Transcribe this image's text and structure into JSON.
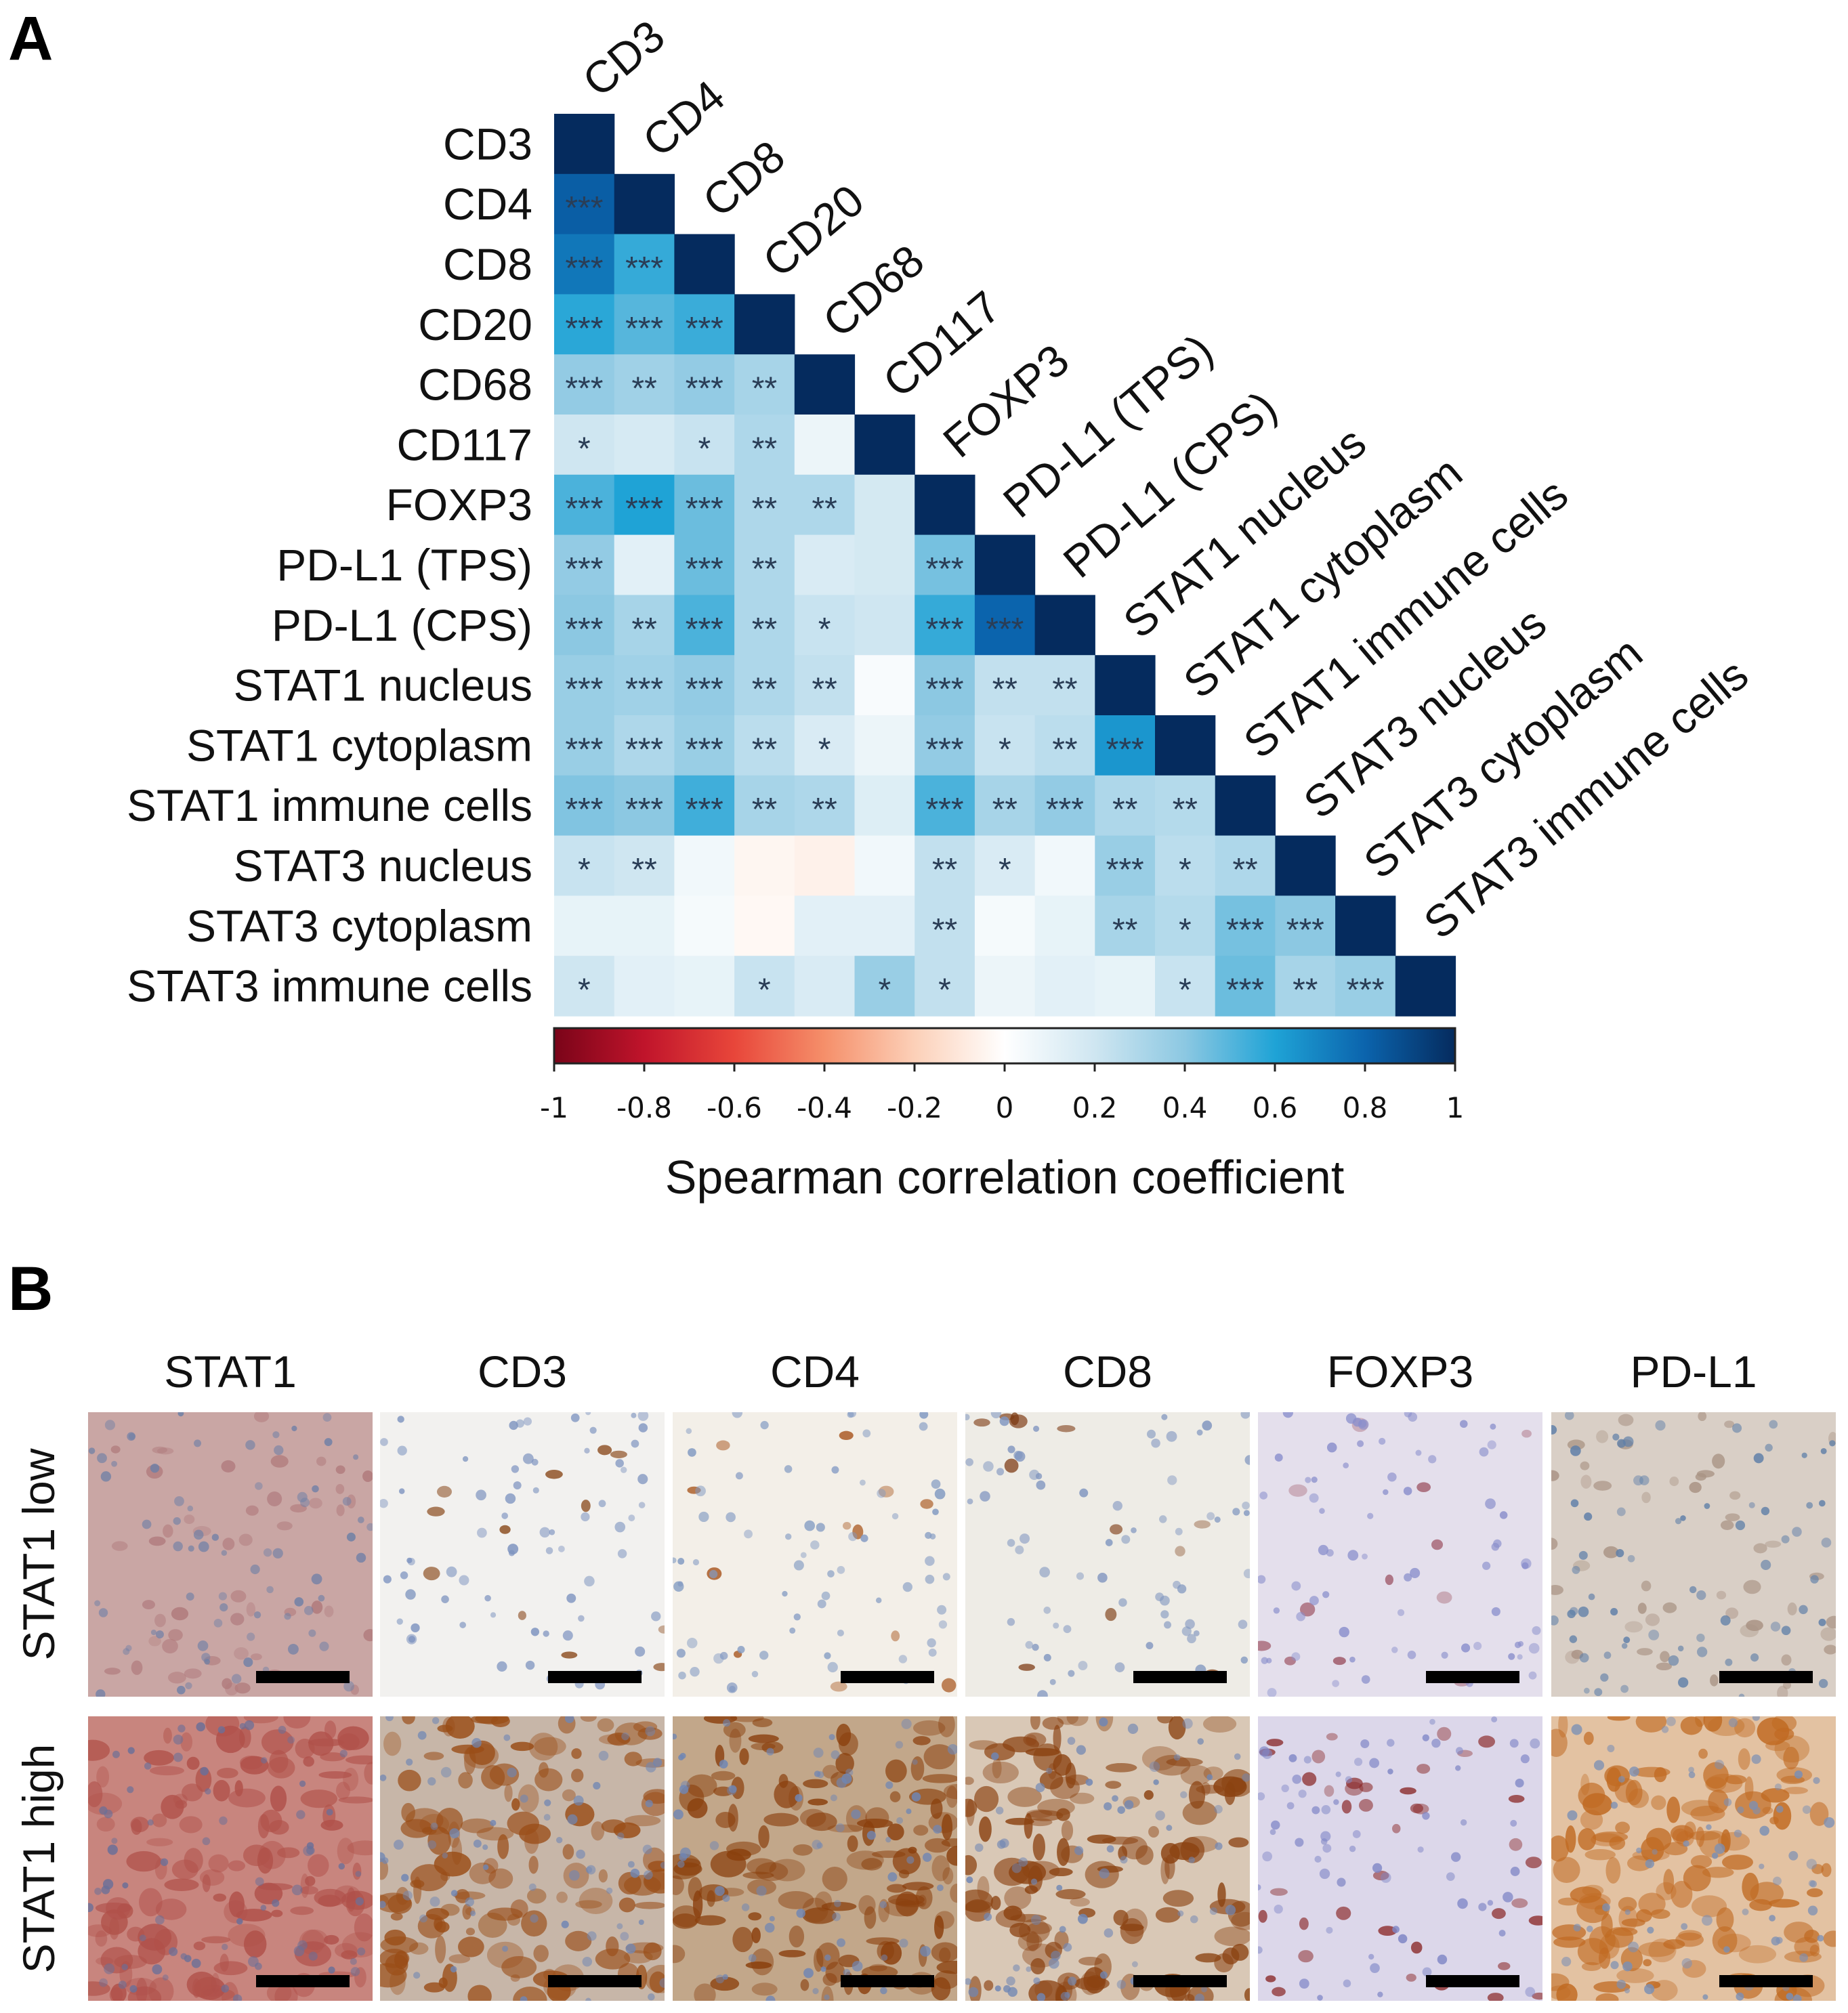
{
  "panel_a": {
    "letter": "A",
    "chart_data": {
      "type": "heatmap",
      "variables": [
        "CD3",
        "CD4",
        "CD8",
        "CD20",
        "CD68",
        "CD117",
        "FOXP3",
        "PD-L1 (TPS)",
        "PD-L1 (CPS)",
        "STAT1 nucleus",
        "STAT1 cytoplasm",
        "STAT1 immune cells",
        "STAT3 nucleus",
        "STAT3 cytoplasm",
        "STAT3 immune cells"
      ],
      "correlation_lower_triangle": [
        [
          1
        ],
        [
          0.82,
          1
        ],
        [
          0.74,
          0.56,
          1
        ],
        [
          0.58,
          0.5,
          0.55,
          1
        ],
        [
          0.38,
          0.34,
          0.38,
          0.32,
          1
        ],
        [
          0.2,
          0.17,
          0.22,
          0.3,
          0.08,
          1
        ],
        [
          0.52,
          0.6,
          0.46,
          0.3,
          0.3,
          0.18,
          1
        ],
        [
          0.38,
          0.12,
          0.46,
          0.3,
          0.16,
          0.18,
          0.44,
          1
        ],
        [
          0.4,
          0.32,
          0.52,
          0.3,
          0.22,
          0.2,
          0.56,
          0.8,
          1
        ],
        [
          0.36,
          0.34,
          0.38,
          0.3,
          0.24,
          0.03,
          0.4,
          0.24,
          0.24,
          1
        ],
        [
          0.36,
          0.3,
          0.36,
          0.26,
          0.16,
          0.08,
          0.38,
          0.22,
          0.26,
          0.64,
          1
        ],
        [
          0.42,
          0.4,
          0.54,
          0.32,
          0.3,
          0.14,
          0.52,
          0.32,
          0.38,
          0.3,
          0.28,
          1
        ],
        [
          0.22,
          0.2,
          0.06,
          -0.04,
          -0.06,
          0.06,
          0.24,
          0.16,
          0.06,
          0.36,
          0.26,
          0.3,
          1
        ],
        [
          0.1,
          0.1,
          0.04,
          -0.03,
          0.12,
          0.12,
          0.24,
          0.04,
          0.1,
          0.32,
          0.28,
          0.44,
          0.4,
          1
        ],
        [
          0.2,
          0.12,
          0.1,
          0.22,
          0.16,
          0.36,
          0.24,
          0.08,
          0.12,
          0.1,
          0.22,
          0.46,
          0.32,
          0.36,
          1
        ]
      ],
      "significance_lower_triangle": [
        [
          ""
        ],
        [
          "***",
          ""
        ],
        [
          "***",
          "***",
          ""
        ],
        [
          "***",
          "***",
          "***",
          ""
        ],
        [
          "***",
          "**",
          "***",
          "**",
          ""
        ],
        [
          "*",
          "",
          "*",
          "**",
          "",
          ""
        ],
        [
          "***",
          "***",
          "***",
          "**",
          "**",
          "",
          ""
        ],
        [
          "***",
          "",
          "***",
          "**",
          "",
          "",
          "***",
          ""
        ],
        [
          "***",
          "**",
          "***",
          "**",
          "*",
          "",
          "***",
          "***",
          ""
        ],
        [
          "***",
          "***",
          "***",
          "**",
          "**",
          "",
          "***",
          "**",
          "**",
          ""
        ],
        [
          "***",
          "***",
          "***",
          "**",
          "*",
          "",
          "***",
          "*",
          "**",
          "***",
          ""
        ],
        [
          "***",
          "***",
          "***",
          "**",
          "**",
          "",
          "***",
          "**",
          "***",
          "**",
          "**",
          ""
        ],
        [
          "*",
          "**",
          "",
          "",
          "",
          "",
          "**",
          "*",
          "",
          "***",
          "*",
          "**",
          ""
        ],
        [
          "",
          "",
          "",
          "",
          "",
          "",
          "**",
          "",
          "",
          "**",
          "*",
          "***",
          "***",
          ""
        ],
        [
          "*",
          "",
          "",
          "*",
          "",
          "*",
          "*",
          "",
          "",
          "",
          "*",
          "***",
          "**",
          "***",
          ""
        ]
      ],
      "colorbar": {
        "range": [
          -1,
          1
        ],
        "ticks": [
          "-1",
          "-0.8",
          "-0.6",
          "-0.4",
          "-0.2",
          "0",
          "0.2",
          "0.4",
          "0.6",
          "0.8",
          "1"
        ],
        "label": "Spearman correlation coefficient",
        "colors": {
          "neg_1": "#7a0419",
          "neg_08": "#c0142b",
          "neg_06": "#e8463a",
          "neg_04": "#f58f6a",
          "neg_02": "#fcd0b8",
          "zero": "#ffffff",
          "pos_02": "#cfe6f1",
          "pos_04": "#8cc8e2",
          "pos_06": "#1fa3d6",
          "pos_08": "#0b64ad",
          "pos_1": "#052b5e"
        }
      }
    }
  },
  "panel_b": {
    "letter": "B",
    "columns": [
      "STAT1",
      "CD3",
      "CD4",
      "CD8",
      "FOXP3",
      "PD-L1"
    ],
    "rows": [
      "STAT1 low",
      "STAT1 high"
    ],
    "tiles_low": [
      {
        "base": "#c9a6a4",
        "nuclei": "#6e7fa6",
        "stain": "#b07a7c"
      },
      {
        "base": "#f2f1ef",
        "nuclei": "#7d93bf",
        "stain": "#8a4a1c"
      },
      {
        "base": "#f3efe8",
        "nuclei": "#8199c2",
        "stain": "#a8561e"
      },
      {
        "base": "#eeece6",
        "nuclei": "#7f95bf",
        "stain": "#7e3c14"
      },
      {
        "base": "#e4dfec",
        "nuclei": "#8a8fcc",
        "stain": "#a05a6a"
      },
      {
        "base": "#d9cfc6",
        "nuclei": "#5f7fa8",
        "stain": "#a99384"
      }
    ],
    "tiles_high": [
      {
        "base": "#c8857e",
        "nuclei": "#6a6f98",
        "stain": "#b0514a"
      },
      {
        "base": "#c7b6a8",
        "nuclei": "#6f86b4",
        "stain": "#9a4d17"
      },
      {
        "base": "#c2a78a",
        "nuclei": "#6f86b4",
        "stain": "#8a3f0c"
      },
      {
        "base": "#d9c8b6",
        "nuclei": "#6f86b4",
        "stain": "#8b4211"
      },
      {
        "base": "#dcd7ea",
        "nuclei": "#7f86c6",
        "stain": "#8b2a2a"
      },
      {
        "base": "#e3c2a2",
        "nuclei": "#7a8fb5",
        "stain": "#c06a22"
      }
    ]
  }
}
